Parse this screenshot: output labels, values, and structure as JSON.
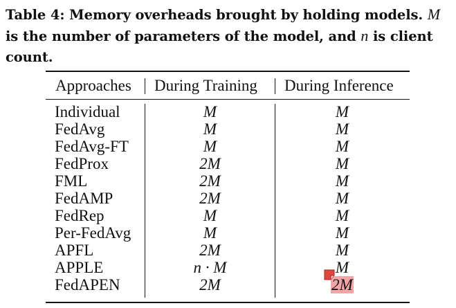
{
  "caption": {
    "label": "Table 4:",
    "text_a": " Memory overheads brought by holding models. ",
    "var_m": "M",
    "text_b": " is the number of parameters of the model, and ",
    "var_n": "n",
    "text_c": " is client count."
  },
  "table": {
    "headers": [
      "Approaches",
      "During Training",
      "During Inference"
    ],
    "rows": [
      {
        "approach": "Individual",
        "training": "M",
        "inference": "M"
      },
      {
        "approach": "FedAvg",
        "training": "M",
        "inference": "M"
      },
      {
        "approach": "FedAvg-FT",
        "training": "M",
        "inference": "M"
      },
      {
        "approach": "FedProx",
        "training": "2M",
        "inference": "M"
      },
      {
        "approach": "FML",
        "training": "2M",
        "inference": "M"
      },
      {
        "approach": "FedAMP",
        "training": "2M",
        "inference": "M"
      },
      {
        "approach": "FedRep",
        "training": "M",
        "inference": "M"
      },
      {
        "approach": "Per-FedAvg",
        "training": "M",
        "inference": "M"
      },
      {
        "approach": "APFL",
        "training": "2M",
        "inference": "M"
      },
      {
        "approach": "APPLE",
        "training": "n · M",
        "inference": "M"
      },
      {
        "approach": "FedAPEN",
        "training": "2M",
        "inference": "2M"
      }
    ]
  },
  "colors": {
    "highlight": "#f4a6a6",
    "note_icon": "#e0463c"
  },
  "icons": {
    "annotation": "sticky-note-icon"
  }
}
